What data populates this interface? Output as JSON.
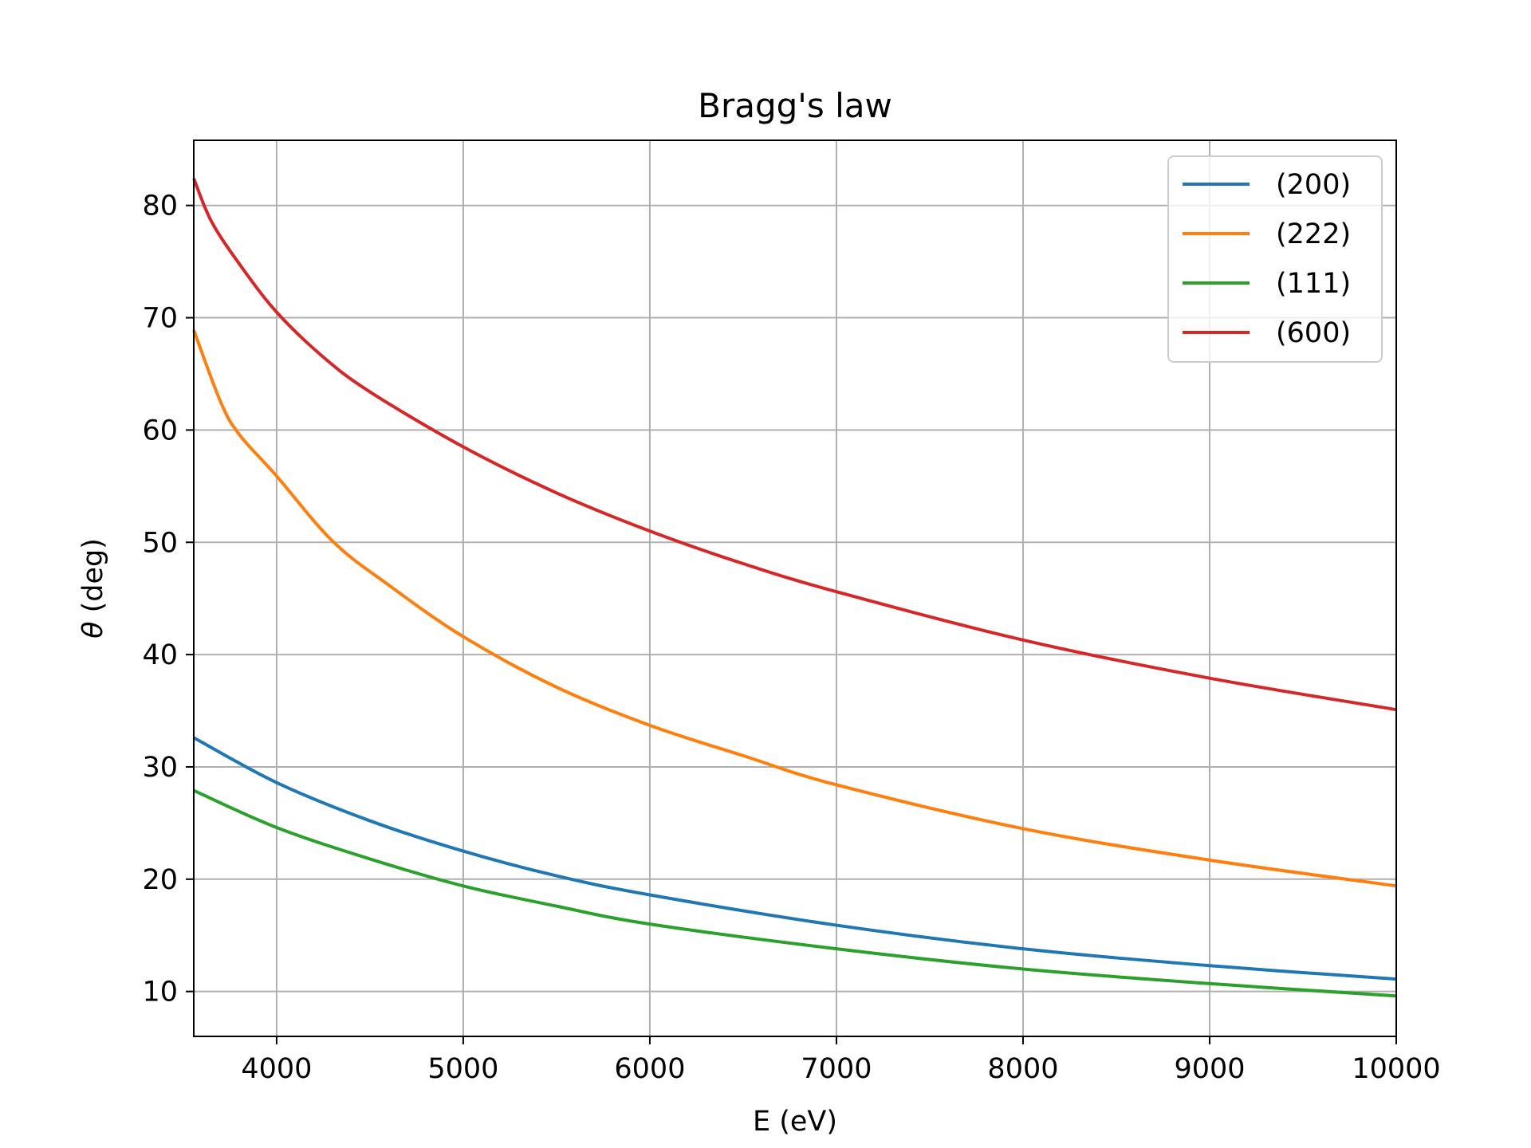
{
  "chart_data": {
    "type": "line",
    "title": "Bragg's law",
    "xlabel": "E (eV)",
    "ylabel_symbol": "θ",
    "ylabel_unit": " (deg)",
    "xlim": [
      3556,
      10000
    ],
    "ylim": [
      6.0,
      85.8
    ],
    "xticks": [
      4000,
      5000,
      6000,
      7000,
      8000,
      9000,
      10000
    ],
    "yticks": [
      10,
      20,
      30,
      40,
      50,
      60,
      70,
      80
    ],
    "grid": true,
    "legend_position": "top-right",
    "series": [
      {
        "name": "(200)",
        "color": "#1f77b4",
        "x": [
          3556,
          4000,
          4500,
          5000,
          5500,
          6000,
          7000,
          8000,
          9000,
          10000
        ],
        "y": [
          32.6,
          28.6,
          25.2,
          22.5,
          20.3,
          18.6,
          15.9,
          13.8,
          12.3,
          11.1
        ]
      },
      {
        "name": "(222)",
        "color": "#ff7f0e",
        "x": [
          3556,
          3700,
          3800,
          4000,
          4300,
          4600,
          5000,
          5500,
          6000,
          6500,
          7000,
          8000,
          9000,
          10000
        ],
        "y": [
          68.9,
          62.5,
          59.6,
          55.9,
          50.1,
          46.2,
          41.6,
          37.1,
          33.7,
          31.0,
          28.4,
          24.5,
          21.7,
          19.4
        ]
      },
      {
        "name": "(111)",
        "color": "#2ca02c",
        "x": [
          3556,
          4000,
          4500,
          5000,
          5500,
          6000,
          7000,
          8000,
          9000,
          10000
        ],
        "y": [
          27.9,
          24.6,
          21.8,
          19.4,
          17.6,
          16.0,
          13.8,
          12.0,
          10.7,
          9.6
        ]
      },
      {
        "name": "(600)",
        "color": "#d62728",
        "x": [
          3556,
          3650,
          3800,
          4000,
          4250,
          4500,
          5000,
          5500,
          6000,
          6500,
          7000,
          8000,
          9000,
          10000
        ],
        "y": [
          82.4,
          78.6,
          74.8,
          70.5,
          66.5,
          63.4,
          58.5,
          54.4,
          51.0,
          48.1,
          45.6,
          41.3,
          37.9,
          35.1
        ]
      }
    ]
  }
}
